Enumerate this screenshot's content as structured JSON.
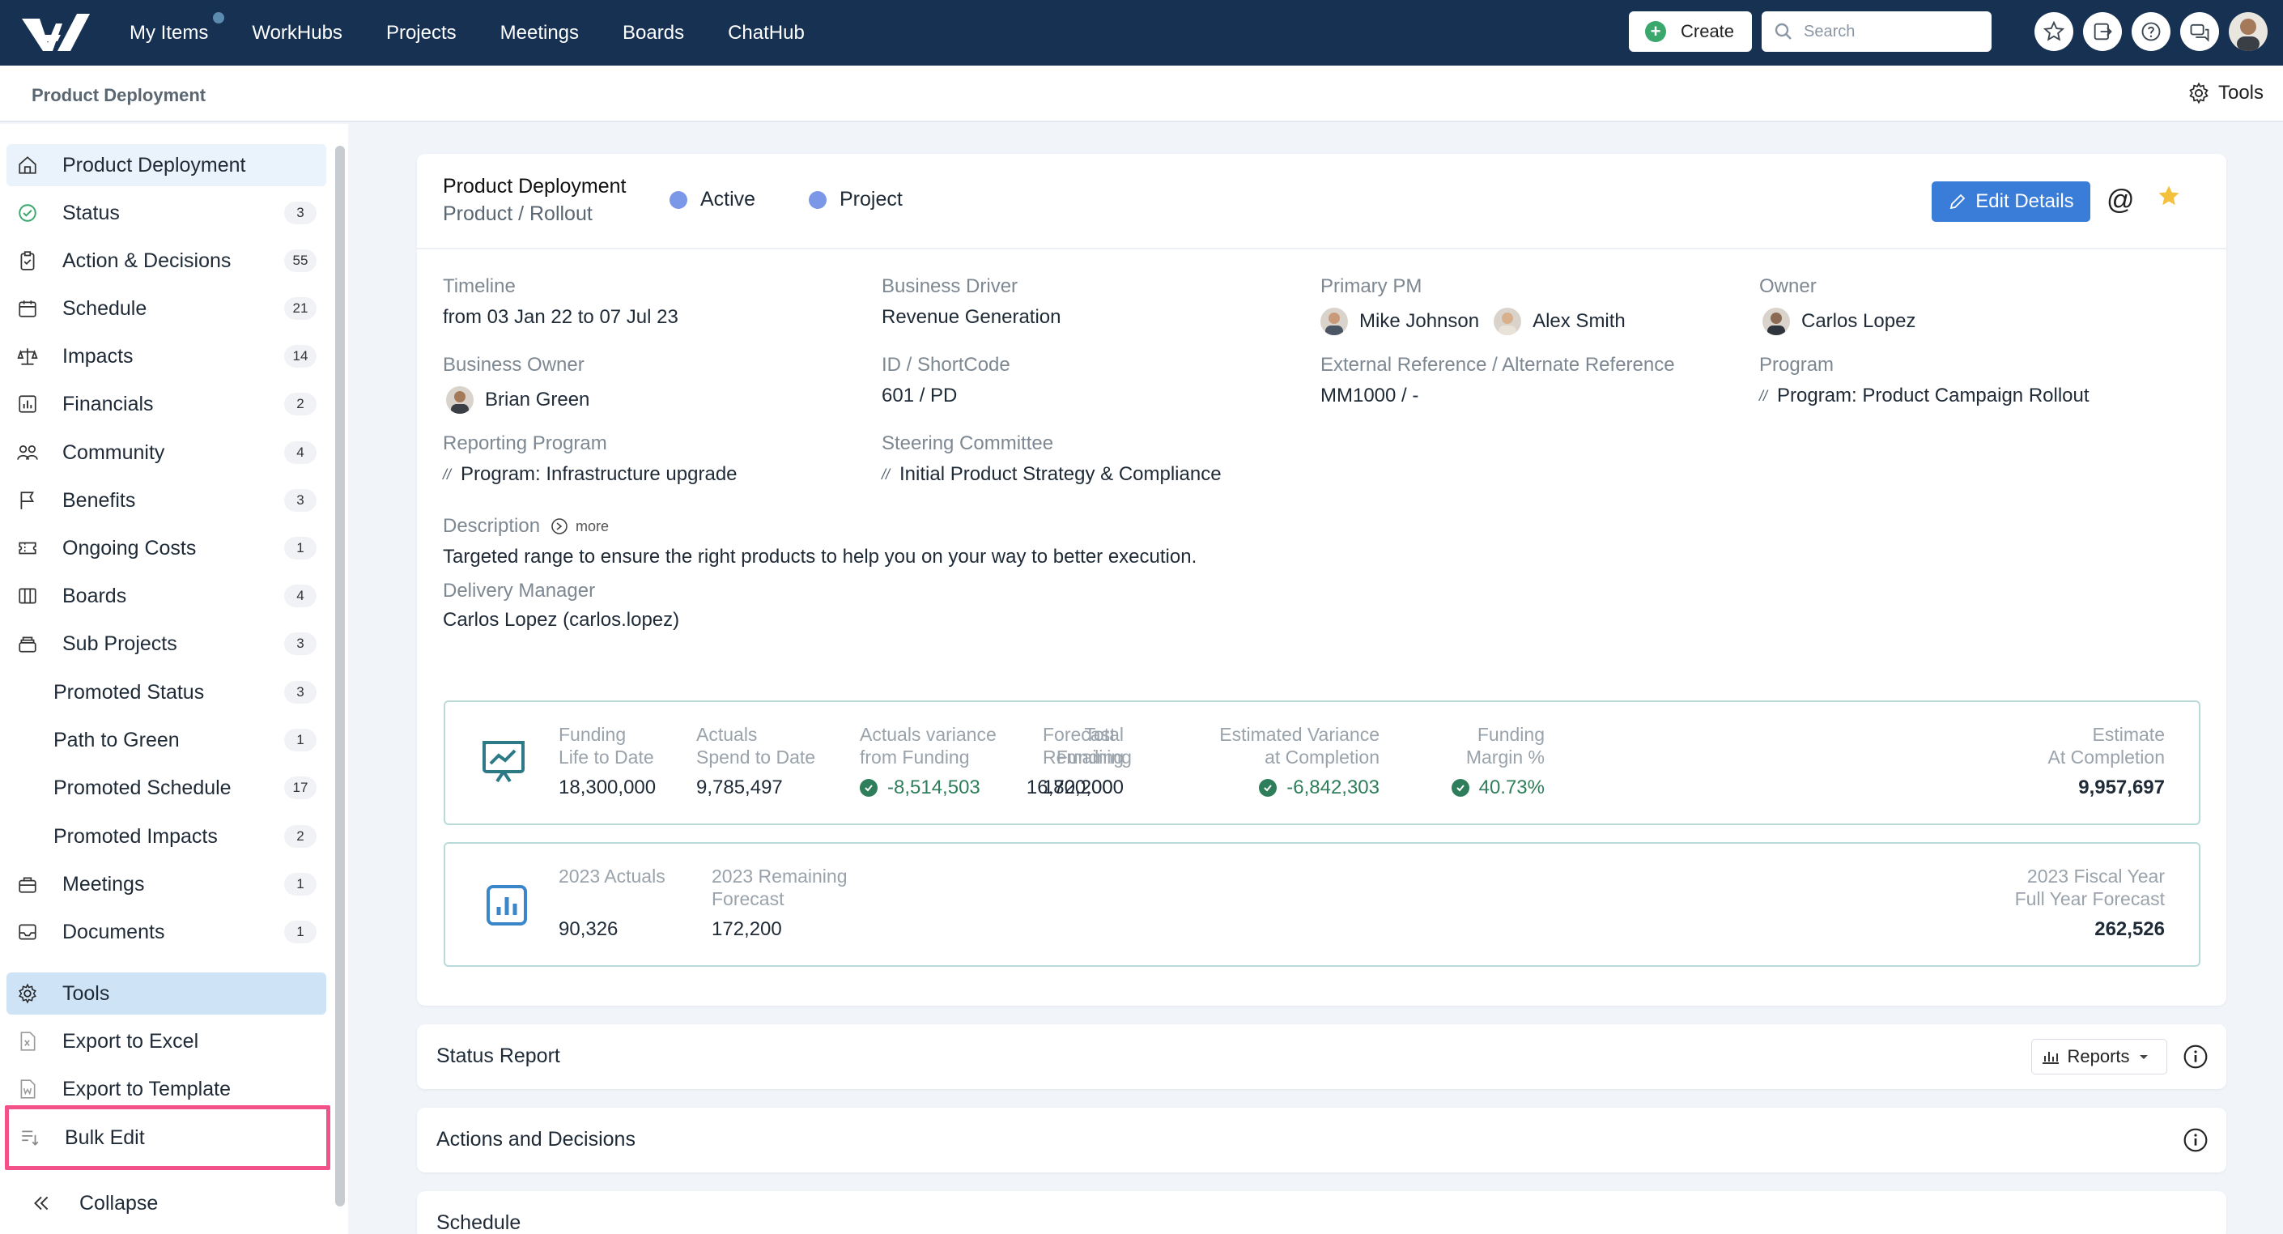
{
  "nav": {
    "items": [
      "My Items",
      "WorkHubs",
      "Projects",
      "Meetings",
      "Boards",
      "ChatHub"
    ],
    "create_label": "Create",
    "search_placeholder": "Search"
  },
  "breadcrumb": "Product Deployment",
  "tools_label": "Tools",
  "sidebar": {
    "items": [
      {
        "label": "Product Deployment",
        "count": "",
        "icon": "home-icon"
      },
      {
        "label": "Status",
        "count": "3",
        "icon": "check-circle-icon"
      },
      {
        "label": "Action & Decisions",
        "count": "55",
        "icon": "clipboard-icon"
      },
      {
        "label": "Schedule",
        "count": "21",
        "icon": "calendar-icon"
      },
      {
        "label": "Impacts",
        "count": "14",
        "icon": "scale-icon"
      },
      {
        "label": "Financials",
        "count": "2",
        "icon": "bar-chart-icon"
      },
      {
        "label": "Community",
        "count": "4",
        "icon": "people-icon"
      },
      {
        "label": "Benefits",
        "count": "3",
        "icon": "flag-icon"
      },
      {
        "label": "Ongoing Costs",
        "count": "1",
        "icon": "ticket-icon"
      },
      {
        "label": "Boards",
        "count": "4",
        "icon": "columns-icon"
      },
      {
        "label": "Sub Projects",
        "count": "3",
        "icon": "stack-icon"
      },
      {
        "label": "Promoted Status",
        "count": "3",
        "icon": ""
      },
      {
        "label": "Path to Green",
        "count": "1",
        "icon": ""
      },
      {
        "label": "Promoted Schedule",
        "count": "17",
        "icon": ""
      },
      {
        "label": "Promoted Impacts",
        "count": "2",
        "icon": ""
      },
      {
        "label": "Meetings",
        "count": "1",
        "icon": "briefcase-icon"
      },
      {
        "label": "Documents",
        "count": "1",
        "icon": "inbox-icon"
      }
    ],
    "tools": "Tools",
    "export_excel": "Export to Excel",
    "export_template": "Export to Template",
    "bulk_edit": "Bulk Edit",
    "collapse": "Collapse"
  },
  "project": {
    "title": "Product Deployment",
    "subtitle": "Product / Rollout",
    "status_tag": "Active",
    "type_tag": "Project",
    "edit_label": "Edit Details",
    "fields": {
      "timeline_label": "Timeline",
      "timeline_value": "from 03 Jan 22 to 07 Jul 23",
      "driver_label": "Business Driver",
      "driver_value": "Revenue Generation",
      "pm_label": "Primary PM",
      "pm_1": "Mike Johnson",
      "pm_2": "Alex Smith",
      "owner_label": "Owner",
      "owner_value": "Carlos Lopez",
      "bowner_label": "Business Owner",
      "bowner_value": "Brian Green",
      "id_label": "ID / ShortCode",
      "id_value": "601 / PD",
      "extref_label": "External Reference / Alternate Reference",
      "extref_value": "MM1000 / -",
      "program_label": "Program",
      "program_value": "Program: Product Campaign Rollout",
      "rprogram_label": "Reporting Program",
      "rprogram_value": "Program: Infrastructure upgrade",
      "steering_label": "Steering Committee",
      "steering_value": "Initial Product Strategy & Compliance",
      "desc_label": "Description",
      "desc_more": "more",
      "desc_value": "Targeted range to ensure the right products to help you on your way to better execution.",
      "dm_label": "Delivery Manager",
      "dm_value": "Carlos Lopez (carlos.lopez)"
    }
  },
  "financials": {
    "funding_l1": "Funding",
    "funding_l2": "Life to Date",
    "funding_v": "18,300,000",
    "actuals_l1": "Actuals",
    "actuals_l2": "Spend to Date",
    "actuals_v": "9,785,497",
    "variance_l1": "Actuals variance",
    "variance_l2": "from Funding",
    "variance_v": "-8,514,503",
    "forecast_l1": "Forecast",
    "forecast_l2": "Remaining",
    "forecast_v": "172,200",
    "total_l1": "Total",
    "total_l2": "Funding",
    "total_v": "16,800,000",
    "estvar_l1": "Estimated Variance",
    "estvar_l2": "at Completion",
    "estvar_v": "-6,842,303",
    "margin_l1": "Funding",
    "margin_l2": "Margin %",
    "margin_v": "40.73%",
    "estimate_l1": "Estimate",
    "estimate_l2": "At Completion",
    "estimate_v": "9,957,697"
  },
  "fiscal": {
    "actuals_l": "2023 Actuals",
    "actuals_v": "90,326",
    "remaining_l1": "2023 Remaining",
    "remaining_l2": "Forecast",
    "remaining_v": "172,200",
    "fy_l1": "2023 Fiscal Year",
    "fy_l2": "Full Year Forecast",
    "fy_v": "262,526"
  },
  "sections": {
    "status_report": "Status Report",
    "reports_label": "Reports",
    "actions": "Actions and Decisions",
    "schedule": "Schedule"
  }
}
